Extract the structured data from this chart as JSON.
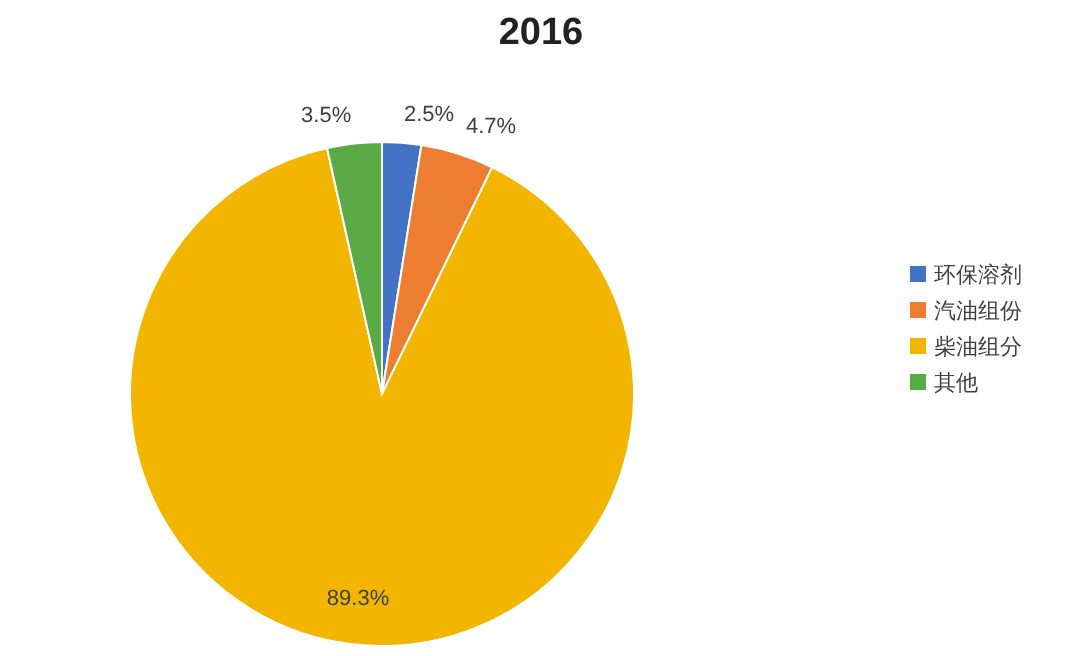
{
  "chart_data": {
    "type": "pie",
    "title": "2016",
    "categories": [
      "环保溶剂",
      "汽油组份",
      "柴油组分",
      "其他"
    ],
    "values": [
      2.5,
      4.7,
      89.3,
      3.5
    ],
    "value_labels": [
      "2.5%",
      "4.7%",
      "89.3%",
      "3.5%"
    ],
    "colors": [
      "#4472c4",
      "#ed7d31",
      "#f2b600",
      "#5aaa46"
    ],
    "legend": "right"
  }
}
